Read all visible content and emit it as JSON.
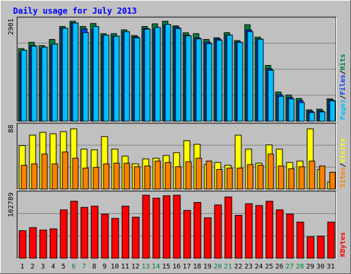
{
  "title": "Daily usage for July 2013",
  "colors": {
    "background": "#c0c0c0",
    "title": "#0000ff",
    "hits": "#008040",
    "files": "#0040ff",
    "pages": "#00c0ff",
    "visits": "#ffff00",
    "sites": "#ff8000",
    "kbytes": "#ff0000",
    "weekend_label": "#008040"
  },
  "chart_data": {
    "type": "bar",
    "categories": [
      "1",
      "2",
      "3",
      "4",
      "5",
      "6",
      "7",
      "8",
      "9",
      "10",
      "11",
      "12",
      "13",
      "14",
      "15",
      "16",
      "17",
      "18",
      "19",
      "20",
      "21",
      "22",
      "23",
      "24",
      "25",
      "26",
      "27",
      "28",
      "29",
      "30",
      "31"
    ],
    "weekend_days": [
      "6",
      "7",
      "13",
      "14",
      "20",
      "21",
      "27",
      "28"
    ],
    "panels": [
      {
        "id": "hits_files_pages",
        "max_label": "2901",
        "ylim": [
          0,
          2901
        ],
        "legend": [
          {
            "label": "Pages",
            "color": "#00c0ff"
          },
          {
            "label": "/",
            "color": "#000000"
          },
          {
            "label": "Files",
            "color": "#0040ff"
          },
          {
            "label": "/",
            "color": "#000000"
          },
          {
            "label": "Hits",
            "color": "#008040"
          }
        ],
        "series": [
          {
            "name": "Hits",
            "values": [
              2106,
              2290,
              2195,
              2373,
              2749,
              2901,
              2749,
              2834,
              2542,
              2542,
              2651,
              2485,
              2749,
              2825,
              2920,
              2769,
              2567,
              2542,
              2373,
              2420,
              2570,
              2340,
              2800,
              2440,
              1620,
              849,
              760,
              660,
              330,
              350,
              650
            ]
          },
          {
            "name": "Files",
            "values": [
              2000,
              2200,
              2100,
              2200,
              2700,
              2850,
              2680,
              2660,
              2470,
              2470,
              2590,
              2450,
              2690,
              2680,
              2780,
              2730,
              2500,
              2420,
              2300,
              2390,
              2500,
              2300,
              2650,
              2390,
              1520,
              770,
              690,
              600,
              290,
              300,
              620
            ]
          },
          {
            "name": "Pages",
            "values": [
              2060,
              2180,
              2150,
              2240,
              2700,
              2850,
              2570,
              2750,
              2500,
              2470,
              2600,
              2420,
              2670,
              2720,
              2810,
              2690,
              2480,
              2390,
              2250,
              2350,
              2500,
              2290,
              2600,
              2380,
              1480,
              720,
              650,
              540,
              250,
              270,
              590
            ]
          }
        ]
      },
      {
        "id": "visits_sites",
        "max_label": "88",
        "ylim": [
          0,
          88
        ],
        "legend": [
          {
            "label": "Sites",
            "color": "#ff8000"
          },
          {
            "label": "/",
            "color": "#000000"
          },
          {
            "label": "Visits",
            "color": "#ffff00"
          }
        ],
        "series": [
          {
            "name": "Visits",
            "values": [
              62,
              77,
              81,
              79,
              82,
              86,
              57,
              56,
              75,
              57,
              47,
              36,
              43,
              44,
              48,
              52,
              69,
              64,
              35,
              38,
              34,
              77,
              57,
              37,
              63,
              57,
              38,
              40,
              86,
              28,
              10
            ]
          },
          {
            "name": "Sites",
            "values": [
              34,
              36,
              50,
              36,
              53,
              44,
              30,
              31,
              36,
              37,
              37,
              32,
              33,
              40,
              38,
              32,
              39,
              44,
              40,
              28,
              30,
              30,
              35,
              34,
              50,
              33,
              29,
              32,
              40,
              33,
              24
            ]
          }
        ]
      },
      {
        "id": "kbytes",
        "max_label": "102789",
        "ylim": [
          0,
          102789
        ],
        "legend": [
          {
            "label": "KBytes",
            "color": "#ff0000"
          }
        ],
        "series": [
          {
            "name": "KBytes",
            "values": [
              45000,
              50000,
              46000,
              48000,
              79000,
              93000,
              83000,
              85000,
              72000,
              65000,
              85000,
              67000,
              103000,
              98000,
              102000,
              103000,
              78000,
              91000,
              66000,
              87000,
              100000,
              70000,
              89000,
              86000,
              93000,
              79000,
              72000,
              59000,
              35000,
              36000,
              59000
            ]
          }
        ]
      }
    ]
  }
}
